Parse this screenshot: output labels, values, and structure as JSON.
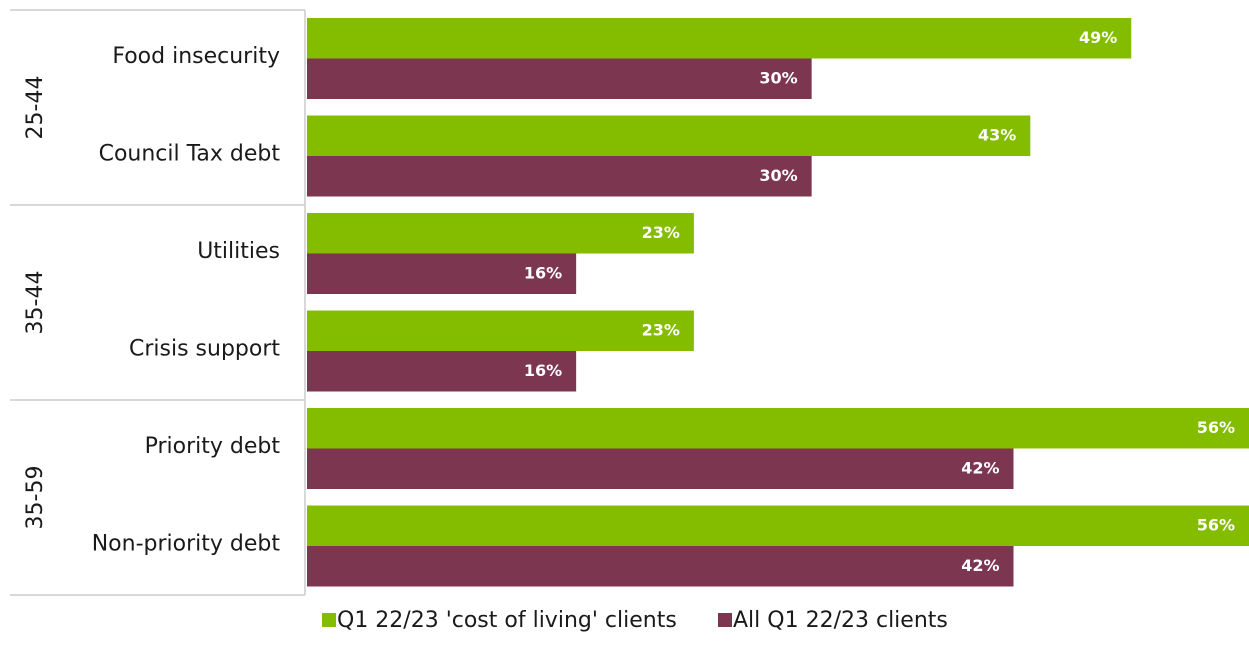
{
  "chart_data": {
    "type": "bar",
    "orientation": "horizontal",
    "groups": [
      {
        "label": "25-44",
        "categories": [
          "Food insecurity",
          "Council Tax debt"
        ]
      },
      {
        "label": "35-44",
        "categories": [
          "Utilities",
          "Crisis support"
        ]
      },
      {
        "label": "35-59",
        "categories": [
          "Priority debt",
          "Non-priority debt"
        ]
      }
    ],
    "series": [
      {
        "name": "Q1 22/23 'cost of living' clients",
        "color": "#84bd00",
        "values": [
          49,
          43,
          23,
          23,
          56,
          56
        ],
        "value_labels": [
          "49%",
          "43%",
          "23%",
          "23%",
          "56%",
          "56%"
        ]
      },
      {
        "name": "All Q1 22/23 clients",
        "color": "#7d3650",
        "values": [
          30,
          30,
          16,
          16,
          42,
          42
        ],
        "value_labels": [
          "30%",
          "30%",
          "16%",
          "16%",
          "42%",
          "42%"
        ]
      }
    ],
    "legend": "bottom"
  }
}
